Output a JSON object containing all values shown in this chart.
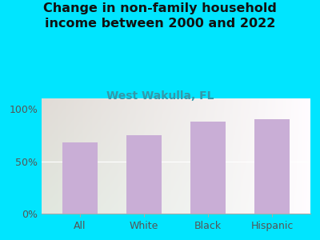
{
  "title": "Change in non-family household\nincome between 2000 and 2022",
  "subtitle": "West Wakulla, FL",
  "categories": [
    "All",
    "White",
    "Black",
    "Hispanic"
  ],
  "values": [
    68,
    75,
    88,
    90
  ],
  "bar_color": "#c9aed6",
  "title_fontsize": 11.5,
  "subtitle_fontsize": 10,
  "subtitle_color": "#3399aa",
  "title_color": "#111111",
  "yticks": [
    0,
    50,
    100
  ],
  "ytick_labels": [
    "0%",
    "50%",
    "100%"
  ],
  "ylim": [
    0,
    110
  ],
  "background_color": "#00e5ff",
  "plot_bg_color_topleft": "#d8e8d0",
  "plot_bg_color_right": "#f0f0ec",
  "tick_color": "#555555",
  "axis_color": "#aaaaaa"
}
